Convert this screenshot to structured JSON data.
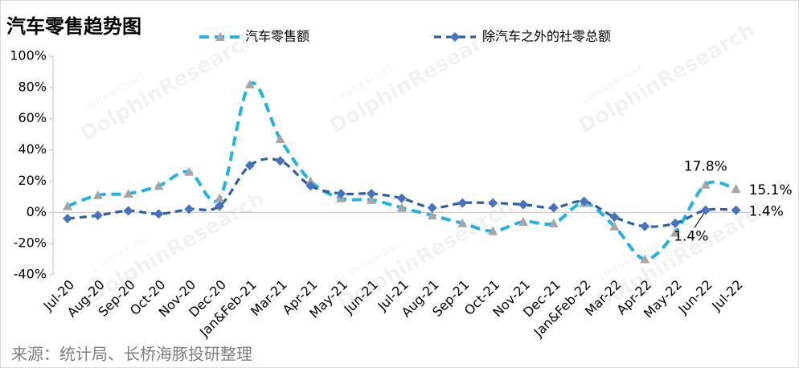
{
  "chart_data": {
    "type": "line",
    "title": "汽车零售趋势图",
    "source": "来源：统计局、长桥海豚投研整理",
    "watermark": [
      "LONGBRIDGE",
      "DolphinResearch"
    ],
    "categories": [
      "Jul-20",
      "Aug-20",
      "Sep-20",
      "Oct-20",
      "Nov-20",
      "Dec-20",
      "Jan&Feb-21",
      "Mar-21",
      "Apr-21",
      "May-21",
      "Jun-21",
      "Jul-21",
      "Aug-21",
      "Sep-21",
      "Oct-21",
      "Nov-21",
      "Dec-21",
      "Jan&Feb-22",
      "Mar-22",
      "Apr-22",
      "May-22",
      "Jun-22",
      "Jul-22"
    ],
    "series": [
      {
        "name": "汽车零售额",
        "color": "#1fb4e8",
        "marker": "triangle",
        "marker_color": "#a6a6a6",
        "values": [
          4,
          11,
          12,
          17,
          26,
          9,
          82,
          47,
          20,
          9,
          8,
          3,
          -2,
          -7,
          -12,
          -6,
          -7,
          6,
          -9,
          -30,
          -13,
          17.8,
          15.1
        ],
        "value_labels": [
          null,
          null,
          null,
          null,
          null,
          null,
          null,
          null,
          null,
          null,
          null,
          null,
          null,
          null,
          null,
          null,
          null,
          null,
          null,
          null,
          null,
          "17.8%",
          "15.1%"
        ]
      },
      {
        "name": "除汽车之外的社零总额",
        "color": "#2e5fa8",
        "marker": "diamond",
        "marker_color": "#4472c4",
        "values": [
          -4,
          -2,
          1,
          -1,
          2,
          4,
          30,
          33,
          17,
          12,
          12,
          9,
          3,
          6,
          6,
          5,
          3,
          7,
          -3,
          -9,
          -7,
          1.4,
          1.4
        ],
        "value_labels": [
          null,
          null,
          null,
          null,
          null,
          null,
          null,
          null,
          null,
          null,
          null,
          null,
          null,
          null,
          null,
          null,
          null,
          null,
          null,
          null,
          null,
          "1.4%",
          "1.4%"
        ]
      }
    ],
    "ylim": [
      -40,
      100
    ],
    "yticks": [
      {
        "value": -40,
        "label": "-40%"
      },
      {
        "value": -20,
        "label": "-20%"
      },
      {
        "value": 0,
        "label": "0%"
      },
      {
        "value": 20,
        "label": "20%"
      },
      {
        "value": 40,
        "label": "40%"
      },
      {
        "value": 60,
        "label": "60%"
      },
      {
        "value": 80,
        "label": "80%"
      },
      {
        "value": 100,
        "label": "100%"
      }
    ],
    "grid": false,
    "legend": "top"
  }
}
